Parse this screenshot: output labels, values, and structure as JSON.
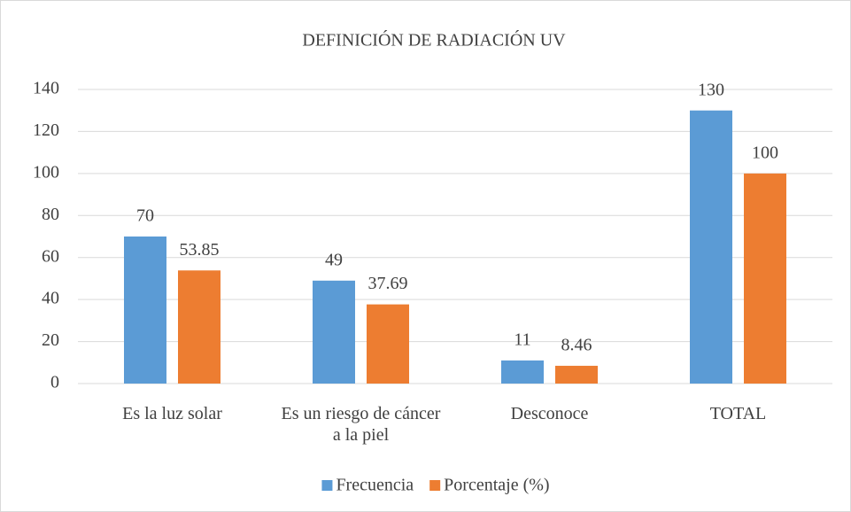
{
  "chart_data": {
    "type": "bar",
    "title": "DEFINICIÓN DE RADIACIÓN UV",
    "categories": [
      "Es la luz solar",
      "Es un riesgo de cáncer a la piel",
      "Desconoce",
      "TOTAL"
    ],
    "series": [
      {
        "name": "Frecuencia",
        "color": "#5b9bd5",
        "values": [
          70,
          49,
          11,
          130
        ]
      },
      {
        "name": "Porcentaje (%)",
        "color": "#ed7d31",
        "values": [
          53.85,
          37.69,
          8.46,
          100
        ]
      }
    ],
    "ylim": [
      0,
      140
    ],
    "yticks": [
      0,
      20,
      40,
      60,
      80,
      100,
      120,
      140
    ],
    "grid": true,
    "legend": "bottom"
  }
}
